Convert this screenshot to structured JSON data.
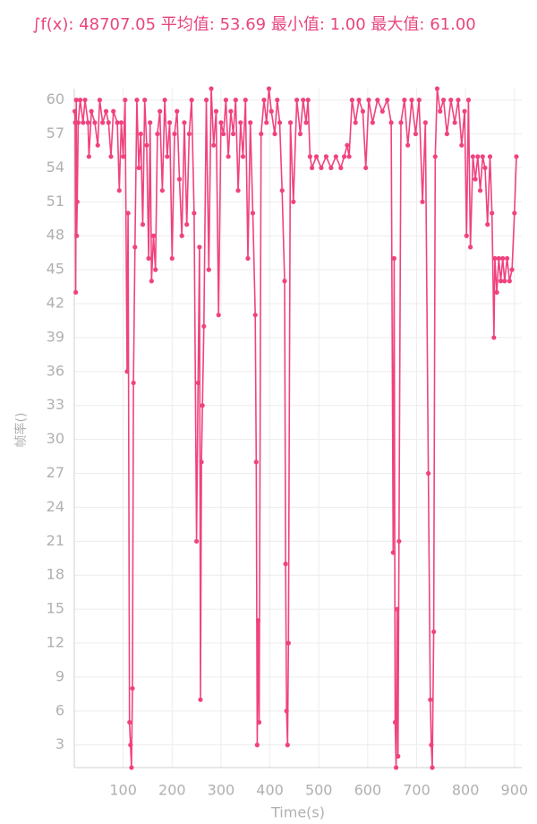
{
  "chart_data": {
    "type": "line",
    "title": "∫f(x): 48707.05 平均值: 53.69 最小值: 1.00 最大值: 61.00",
    "x_label": "Time(s)",
    "y_label": "帧率()",
    "xlim": [
      0,
      915
    ],
    "ylim": [
      1,
      61
    ],
    "xticks": [
      100,
      200,
      300,
      400,
      500,
      600,
      700,
      800,
      900
    ],
    "yticks": [
      3,
      6,
      9,
      12,
      15,
      18,
      21,
      24,
      27,
      30,
      33,
      36,
      39,
      42,
      45,
      48,
      51,
      54,
      57,
      60
    ],
    "grid": true,
    "series": [
      {
        "color": "#f0427f",
        "x": [
          1,
          2,
          3,
          4,
          5,
          6,
          8,
          12,
          18,
          22,
          28,
          30,
          35,
          42,
          48,
          52,
          58,
          65,
          70,
          75,
          80,
          88,
          92,
          96,
          100,
          104,
          108,
          110,
          113,
          115,
          117,
          119,
          121,
          124,
          128,
          132,
          136,
          140,
          144,
          148,
          152,
          155,
          158,
          162,
          166,
          170,
          175,
          180,
          185,
          190,
          195,
          200,
          205,
          210,
          215,
          220,
          225,
          230,
          235,
          240,
          245,
          250,
          253,
          256,
          258,
          260,
          262,
          265,
          270,
          275,
          280,
          285,
          290,
          295,
          300,
          305,
          310,
          315,
          320,
          325,
          330,
          335,
          340,
          345,
          350,
          355,
          360,
          365,
          370,
          372,
          374,
          376,
          378,
          382,
          388,
          393,
          398,
          403,
          410,
          415,
          420,
          425,
          430,
          432,
          434,
          436,
          438,
          442,
          448,
          455,
          462,
          468,
          474,
          478,
          482,
          486,
          495,
          505,
          515,
          525,
          535,
          545,
          552,
          558,
          562,
          568,
          575,
          582,
          590,
          596,
          602,
          610,
          620,
          630,
          640,
          648,
          652,
          654,
          656,
          658,
          660,
          662,
          664,
          668,
          675,
          682,
          690,
          698,
          705,
          712,
          718,
          724,
          728,
          730,
          732,
          735,
          738,
          742,
          748,
          755,
          762,
          770,
          778,
          785,
          792,
          798,
          802,
          806,
          810,
          815,
          820,
          825,
          830,
          835,
          840,
          845,
          850,
          854,
          858,
          860,
          864,
          868,
          872,
          876,
          880,
          885,
          890,
          895,
          900,
          904
        ],
        "values": [
          59,
          58,
          43,
          60,
          48,
          51,
          58,
          60,
          58,
          60,
          58,
          55,
          59,
          58,
          56,
          60,
          58,
          59,
          58,
          55,
          59,
          58,
          52,
          58,
          55,
          60,
          36,
          50,
          5,
          3,
          1,
          8,
          35,
          47,
          60,
          54,
          57,
          49,
          60,
          56,
          46,
          58,
          44,
          48,
          45,
          57,
          59,
          52,
          60,
          55,
          58,
          46,
          57,
          59,
          53,
          48,
          58,
          49,
          57,
          60,
          50,
          21,
          35,
          47,
          7,
          28,
          33,
          40,
          60,
          45,
          61,
          56,
          59,
          41,
          58,
          57,
          60,
          55,
          59,
          57,
          60,
          52,
          58,
          55,
          60,
          46,
          58,
          50,
          41,
          28,
          3,
          14,
          5,
          57,
          60,
          58,
          61,
          59,
          57,
          60,
          58,
          52,
          44,
          19,
          6,
          3,
          12,
          58,
          51,
          60,
          57,
          60,
          58,
          60,
          55,
          54,
          55,
          54,
          55,
          54,
          55,
          54,
          55,
          56,
          55,
          60,
          58,
          60,
          59,
          54,
          60,
          58,
          60,
          59,
          60,
          58,
          20,
          46,
          5,
          1,
          15,
          2,
          21,
          58,
          60,
          56,
          60,
          57,
          60,
          51,
          58,
          27,
          7,
          3,
          1,
          13,
          55,
          61,
          59,
          60,
          57,
          60,
          58,
          60,
          56,
          59,
          48,
          60,
          47,
          55,
          53,
          55,
          52,
          55,
          54,
          49,
          55,
          50,
          39,
          46,
          43,
          46,
          44,
          46,
          44,
          46,
          44,
          45,
          50,
          55
        ]
      }
    ]
  }
}
